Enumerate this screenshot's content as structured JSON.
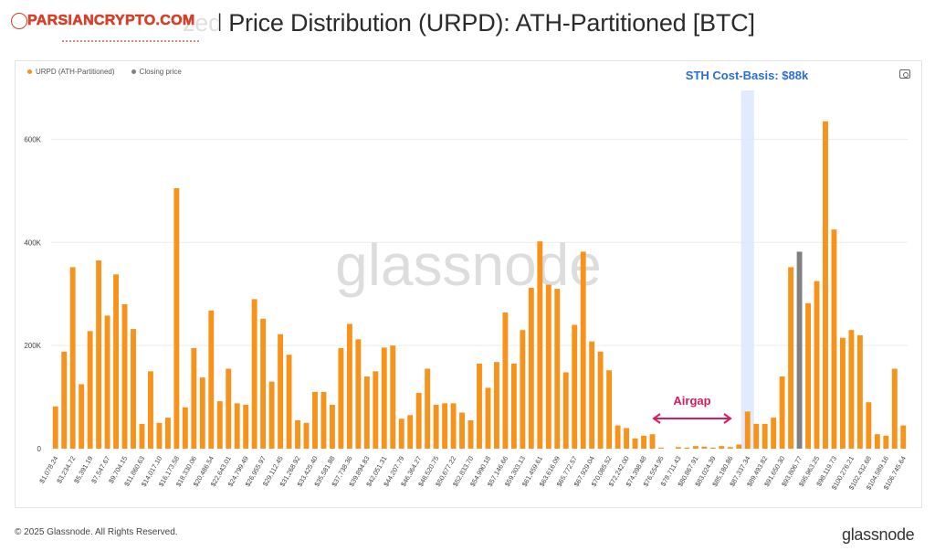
{
  "title": "zed Price Distribution (URPD): ATH-Partitioned [BTC]",
  "watermark_logo": {
    "name": "PARSIANCRYPTO.COM"
  },
  "footer": "© 2025 Glassnode. All Rights Reserved.",
  "brand": "glassnode",
  "watermark": "glassnode",
  "colors": {
    "series": "#f7931a",
    "closing": "#808080",
    "sth_band": "#dbe8ff",
    "sth_text": "#2a6ed8",
    "airgap": "#d81b60"
  },
  "chart_data": {
    "type": "bar",
    "legend": [
      "URPD (ATH-Partitioned)",
      "Closing price"
    ],
    "legend_position": "top-left",
    "grid": true,
    "ylim": [
      0,
      700000
    ],
    "yticks": [
      {
        "value": 0,
        "label": "0"
      },
      {
        "value": 200000,
        "label": "200K"
      },
      {
        "value": 400000,
        "label": "400K"
      },
      {
        "value": 600000,
        "label": "600K"
      }
    ],
    "tick_labels": [
      "$1,078.24",
      "$3,234.72",
      "$5,391.19",
      "$7,547.67",
      "$9,704.15",
      "$11,860.63",
      "$14,017.10",
      "$16,173.58",
      "$18,330.06",
      "$20,486.54",
      "$22,643.01",
      "$24,799.49",
      "$26,955.97",
      "$29,112.45",
      "$31,268.92",
      "$33,425.40",
      "$35,581.88",
      "$37,738.36",
      "$39,894.83",
      "$42,051.31",
      "$44,207.79",
      "$46,364.27",
      "$48,520.75",
      "$50,677.22",
      "$52,833.70",
      "$54,990.18",
      "$57,146.66",
      "$59,303.13",
      "$61,459.61",
      "$63,616.09",
      "$65,772.57",
      "$67,929.04",
      "$70,085.52",
      "$72,242.00",
      "$74,398.48",
      "$76,554.95",
      "$78,711.43",
      "$80,867.91",
      "$83,024.39",
      "$85,180.86",
      "$87,337.34",
      "$89,493.82",
      "$91,650.30",
      "$93,806.77",
      "$95,963.25",
      "$98,119.73",
      "$100,276.21",
      "$102,432.68",
      "$104,589.16",
      "$106,745.64"
    ],
    "values": [
      82000,
      188000,
      352000,
      125000,
      228000,
      365000,
      258000,
      338000,
      280000,
      232000,
      48000,
      150000,
      50000,
      60000,
      505000,
      80000,
      195000,
      138000,
      268000,
      92000,
      155000,
      88000,
      85000,
      290000,
      252000,
      130000,
      222000,
      182000,
      55000,
      50000,
      110000,
      110000,
      85000,
      195000,
      242000,
      212000,
      140000,
      150000,
      196000,
      200000,
      58000,
      65000,
      108000,
      155000,
      85000,
      88000,
      88000,
      70000,
      55000,
      165000,
      118000,
      168000,
      264000,
      165000,
      230000,
      312000,
      402000,
      318000,
      310000,
      148000,
      240000,
      382000,
      208000,
      188000,
      152000,
      45000,
      40000,
      20000,
      25000,
      28000,
      2000,
      0,
      3000,
      2000,
      5000,
      4000,
      2000,
      5000,
      3000,
      8000,
      72000,
      48000,
      48000,
      60000,
      140000,
      352000,
      382000,
      282000,
      325000,
      635000,
      425000,
      215000,
      230000,
      220000,
      90000,
      28000,
      25000,
      155000,
      45000
    ],
    "closing_index": 86,
    "sth_index": 80,
    "annotations": {
      "sth_label": "STH Cost-Basis: $88k",
      "airgap_label": "Airgap"
    }
  }
}
